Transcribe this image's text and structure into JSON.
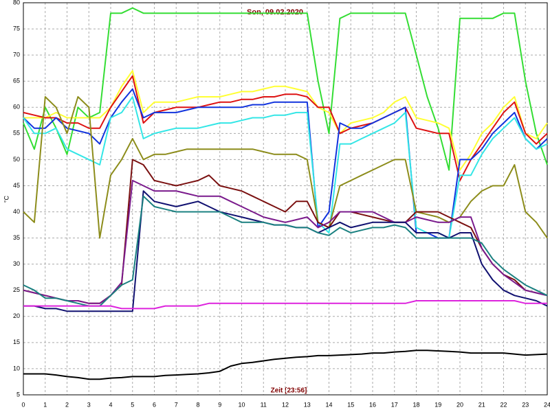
{
  "chart_data": {
    "type": "line",
    "title": "Son, 09.02.2020",
    "xlabel": "Zeit [23:56]",
    "ylabel": "°C",
    "xlim": [
      0,
      24
    ],
    "ylim": [
      5,
      80
    ],
    "xticks": [
      0,
      1,
      2,
      3,
      4,
      5,
      6,
      7,
      8,
      9,
      10,
      11,
      12,
      13,
      14,
      15,
      16,
      17,
      18,
      19,
      20,
      21,
      22,
      23,
      24
    ],
    "yticks": [
      5,
      10,
      15,
      20,
      25,
      30,
      35,
      40,
      45,
      50,
      55,
      60,
      65,
      70,
      75,
      80
    ],
    "grid": true,
    "x": [
      0,
      0.5,
      1,
      1.5,
      2,
      2.5,
      3,
      3.5,
      4,
      4.5,
      5,
      5.5,
      6,
      6.5,
      7,
      7.5,
      8,
      8.5,
      9,
      9.5,
      10,
      10.5,
      11,
      11.5,
      12,
      12.5,
      13,
      13.5,
      14,
      14.5,
      15,
      15.5,
      16,
      16.5,
      17,
      17.5,
      18,
      18.5,
      19,
      19.5,
      20,
      20.5,
      21,
      21.5,
      22,
      22.5,
      23,
      23.5,
      24
    ],
    "series": [
      {
        "color": "#33dd33",
        "values": [
          57,
          52,
          60,
          56,
          51,
          60,
          58,
          59,
          78,
          78,
          79,
          78,
          78,
          78,
          78,
          78,
          78,
          78,
          78,
          78,
          78,
          78,
          78,
          78,
          78,
          78,
          78,
          65,
          55,
          77,
          78,
          78,
          78,
          78,
          78,
          78,
          70,
          62,
          56,
          48,
          77,
          77,
          77,
          77,
          78,
          78,
          65,
          55,
          49
        ]
      },
      {
        "color": "#ffff33",
        "values": [
          58,
          58,
          58,
          59,
          58,
          58,
          58,
          58,
          60,
          64,
          67,
          59,
          61,
          61,
          61,
          61.5,
          62,
          62,
          62,
          62.5,
          63,
          63,
          63.5,
          64,
          64,
          63.5,
          63,
          60,
          59,
          55,
          57,
          57.5,
          58,
          59,
          61,
          62,
          58,
          57.5,
          57,
          56,
          48,
          51,
          55,
          57,
          60,
          62,
          55,
          54,
          57
        ]
      },
      {
        "color": "#dd1111",
        "values": [
          59,
          58.5,
          58,
          58,
          57,
          57,
          56,
          56,
          60,
          63,
          66,
          57,
          59,
          59.5,
          60,
          60,
          60,
          60.5,
          61,
          61,
          61.5,
          61.5,
          62,
          62,
          62.5,
          62.5,
          62,
          60,
          60,
          55,
          56,
          56.5,
          57,
          58,
          59,
          60,
          56,
          55.5,
          55,
          55,
          46,
          50,
          53,
          56,
          59,
          61,
          55,
          53,
          55
        ]
      },
      {
        "color": "#1133dd",
        "values": [
          58,
          56,
          56,
          58,
          56,
          55.5,
          55,
          53,
          58,
          61,
          63.5,
          58,
          59,
          59,
          59,
          59.5,
          60,
          60,
          60,
          60,
          60,
          60.5,
          60.5,
          61,
          61,
          61,
          61,
          37,
          40,
          57,
          56,
          56,
          57,
          58,
          59,
          60,
          36,
          36,
          35,
          35,
          50,
          50,
          52,
          55,
          57,
          59,
          54,
          52,
          54
        ]
      },
      {
        "color": "#33e6e6",
        "values": [
          58,
          55,
          55,
          56,
          52,
          51,
          50,
          49,
          58,
          59,
          62,
          54,
          55,
          55.5,
          56,
          56,
          56,
          56.5,
          57,
          57,
          57.5,
          58,
          58,
          58.5,
          58.5,
          59,
          59,
          38,
          36,
          53,
          53,
          54,
          55,
          56,
          57,
          59,
          37,
          36,
          36,
          35,
          47,
          47,
          51,
          54,
          56,
          58,
          54,
          52,
          53
        ]
      },
      {
        "color": "#8c8c1a",
        "values": [
          40,
          38,
          62,
          60,
          55,
          62,
          60,
          35,
          47,
          50,
          54,
          50,
          51,
          51,
          51.5,
          52,
          52,
          52,
          52,
          52,
          52,
          52,
          51.5,
          51,
          51,
          51,
          50,
          38,
          37,
          45,
          46,
          47,
          48,
          49,
          50,
          50,
          40,
          39.5,
          39,
          38,
          39,
          42,
          44,
          45,
          45,
          49,
          40,
          38,
          35
        ]
      },
      {
        "color": "#7a1010",
        "values": [
          25,
          24.5,
          24,
          23.5,
          23,
          23,
          22.5,
          22.5,
          24,
          26,
          50,
          49,
          46,
          45.5,
          45,
          45.5,
          46,
          47,
          45,
          44.5,
          44,
          43,
          42,
          41,
          40,
          42,
          42,
          38,
          37,
          40,
          40,
          39.5,
          39,
          38.5,
          38,
          38,
          40,
          40,
          40,
          39,
          38,
          37,
          33,
          30,
          28,
          27,
          25,
          24.5,
          24
        ]
      },
      {
        "color": "#7a1a8c",
        "values": [
          25,
          24.5,
          24,
          23.5,
          23,
          23,
          22.5,
          22.5,
          24,
          26.5,
          46,
          45,
          44,
          44,
          44,
          43.5,
          43,
          43,
          43,
          42,
          41,
          40,
          39,
          38.5,
          38,
          38.5,
          39,
          37,
          38,
          40,
          40,
          40,
          40,
          39,
          38,
          38,
          39,
          38.5,
          38,
          38,
          39,
          39,
          33,
          30,
          28,
          26.5,
          25,
          24.5,
          24
        ]
      },
      {
        "color": "#101070",
        "values": [
          22,
          22,
          21.5,
          21.5,
          21,
          21,
          21,
          21,
          21,
          21,
          21,
          44,
          42,
          41.5,
          41,
          41.5,
          42,
          41,
          40,
          39.5,
          39,
          38.5,
          38,
          37.5,
          37.5,
          37,
          37,
          36,
          37,
          38,
          37,
          37.5,
          38,
          38,
          38,
          38,
          36,
          36,
          36,
          35,
          36,
          36,
          30,
          27,
          25,
          24,
          23.5,
          23,
          22
        ]
      },
      {
        "color": "#1a8080",
        "values": [
          26,
          25,
          23.5,
          23.5,
          23,
          22.5,
          22,
          22,
          24,
          26,
          27,
          43,
          41,
          40.5,
          40,
          40,
          40,
          40,
          40,
          39,
          38,
          38,
          38,
          37.5,
          37.5,
          37,
          37,
          36,
          35.5,
          37,
          36,
          36.5,
          37,
          37,
          37.5,
          37,
          35,
          35,
          35,
          35,
          35,
          35,
          34,
          31,
          29,
          27.5,
          26,
          25,
          24
        ]
      },
      {
        "color": "#dd22dd",
        "values": [
          22,
          22,
          22,
          22,
          22,
          22,
          22,
          22,
          22,
          21.5,
          21.5,
          21.5,
          21.5,
          22,
          22,
          22,
          22,
          22.5,
          22.5,
          22.5,
          22.5,
          22.5,
          22.5,
          22.5,
          22.5,
          22.5,
          22.5,
          22.5,
          22.5,
          22.5,
          22.5,
          22.5,
          22.5,
          22.5,
          22.5,
          22.5,
          23,
          23,
          23,
          23,
          23,
          23,
          23,
          23,
          23,
          23,
          22.5,
          22.5,
          22.5
        ]
      },
      {
        "color": "#000000",
        "values": [
          9,
          9,
          9,
          8.8,
          8.5,
          8.3,
          8,
          8,
          8.2,
          8.3,
          8.5,
          8.5,
          8.5,
          8.7,
          8.8,
          8.9,
          9,
          9.2,
          9.5,
          10.5,
          11,
          11.2,
          11.5,
          11.8,
          12,
          12.2,
          12.3,
          12.5,
          12.5,
          12.6,
          12.7,
          12.8,
          13,
          13,
          13.2,
          13.3,
          13.5,
          13.5,
          13.4,
          13.3,
          13.2,
          13,
          13,
          13,
          13,
          12.8,
          12.6,
          12.7,
          12.8
        ]
      }
    ]
  }
}
